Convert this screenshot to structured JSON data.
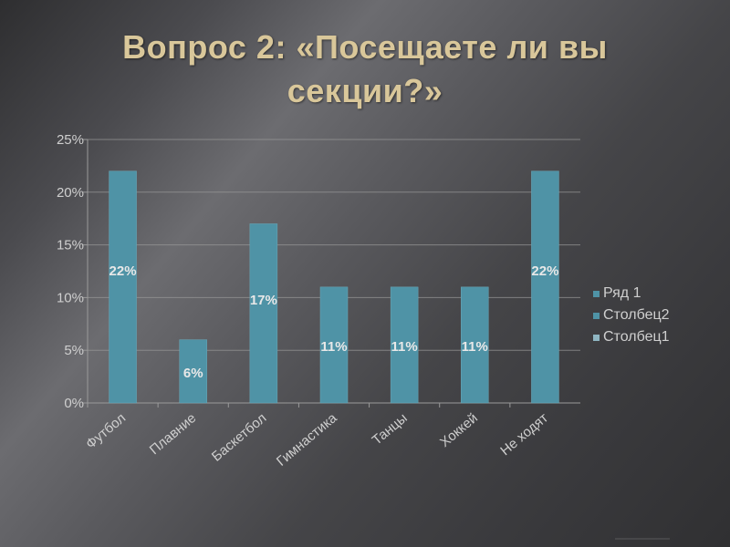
{
  "slide": {
    "title_line1": "Вопрос 2: «Посещаете ли вы",
    "title_line2": "секции?»"
  },
  "colors": {
    "background": "#4a4a4e",
    "title": "#d9c79a",
    "bar": "#4f93a6",
    "axis_text": "#cfcfcf",
    "grid": "#9a9a9a",
    "data_label": "#e8e8e8"
  },
  "chart_data": {
    "type": "bar",
    "categories": [
      "Футбол",
      "Плавние",
      "Баскетбол",
      "Гимнастика",
      "Танцы",
      "Хоккей",
      "Не ходят"
    ],
    "series": [
      {
        "name": "Ряд 1",
        "values": [
          22,
          6,
          17,
          11,
          11,
          11,
          22
        ]
      }
    ],
    "data_labels": [
      "22%",
      "6%",
      "17%",
      "11%",
      "11%",
      "11%",
      "22%"
    ],
    "legend": [
      "Ряд 1",
      "Столбец2",
      "Столбец1"
    ],
    "legend_position": "right",
    "yticks": [
      "0%",
      "5%",
      "10%",
      "15%",
      "20%",
      "25%"
    ],
    "ylim": [
      0,
      25
    ],
    "grid": true
  }
}
